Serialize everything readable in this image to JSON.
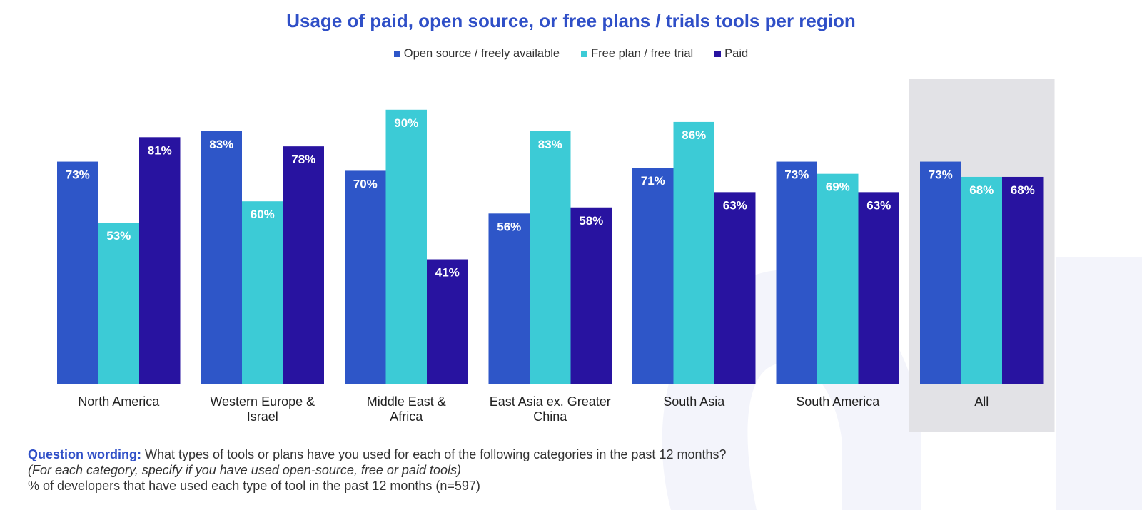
{
  "chart_data": {
    "type": "bar",
    "title": "Usage of paid, open source, or free plans / trials tools per region",
    "categories": [
      [
        "North America"
      ],
      [
        "Western Europe &",
        "Israel"
      ],
      [
        "Middle East &",
        "Africa"
      ],
      [
        "East Asia ex. Greater",
        "China"
      ],
      [
        "South Asia"
      ],
      [
        "South America"
      ],
      [
        "All"
      ]
    ],
    "series": [
      {
        "name": "Open source / freely available",
        "color": "#2e56c8",
        "values": [
          73,
          83,
          70,
          56,
          71,
          73,
          73
        ]
      },
      {
        "name": "Free plan / free trial",
        "color": "#3ccbd6",
        "values": [
          53,
          60,
          90,
          83,
          86,
          69,
          68
        ]
      },
      {
        "name": "Paid",
        "color": "#2813a0",
        "values": [
          81,
          78,
          41,
          58,
          63,
          63,
          68
        ]
      }
    ],
    "value_labels": [
      [
        "73%",
        "83%",
        "70%",
        "56%",
        "71%",
        "73%",
        "73%"
      ],
      [
        "53%",
        "60%",
        "90%",
        "83%",
        "86%",
        "69%",
        "68%"
      ],
      [
        "81%",
        "78%",
        "41%",
        "58%",
        "63%",
        "63%",
        "68%"
      ]
    ],
    "ylim": [
      0,
      100
    ],
    "highlighted_category": "All",
    "legend_position": "top-center"
  },
  "footnote": {
    "label": "Question wording:",
    "question": "What types of tools or plans have you used for each of the following categories in the past 12 months?",
    "instruction": "(For each category, specify if you have used open-source, free or paid tools)",
    "base": "% of developers that have used each type of tool in the past 12 months (n=597)"
  },
  "colors": {
    "title": "#2f4fc7",
    "highlight_bg": "#e2e2e6",
    "deco": "#f3f4fb"
  }
}
